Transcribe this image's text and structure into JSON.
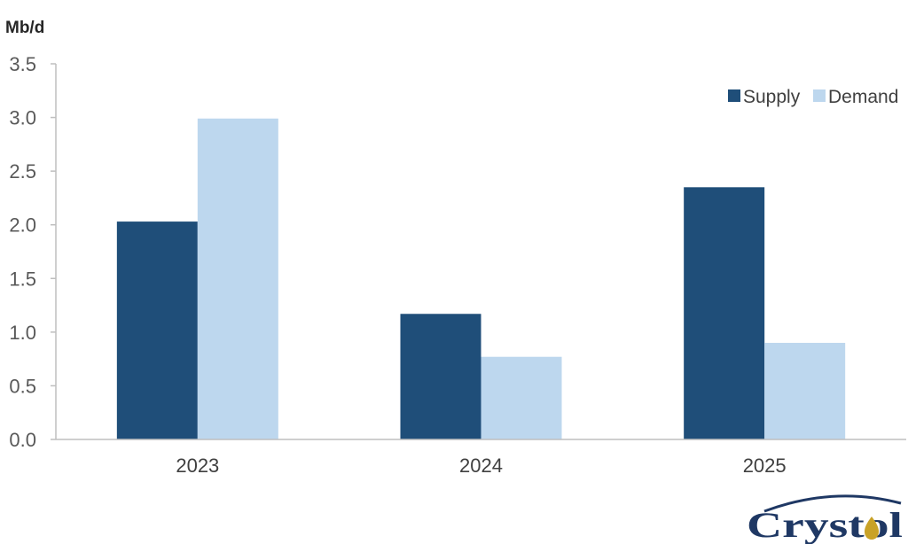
{
  "chart_data": {
    "type": "bar",
    "ylabel": "Mb/d",
    "categories": [
      "2023",
      "2024",
      "2025"
    ],
    "series": [
      {
        "name": "Supply",
        "color": "#1f4e79",
        "values": [
          2.03,
          1.17,
          2.35
        ]
      },
      {
        "name": "Demand",
        "color": "#bdd7ee",
        "values": [
          2.99,
          0.77,
          0.9
        ]
      }
    ],
    "ylim": [
      0,
      3.5
    ],
    "yticks": [
      "0.0",
      "0.5",
      "1.0",
      "1.5",
      "2.0",
      "2.5",
      "3.0",
      "3.5"
    ],
    "grid": false,
    "legend": "top-right"
  },
  "logo": {
    "text": "Crystol",
    "icon": "oil-drop-icon"
  }
}
